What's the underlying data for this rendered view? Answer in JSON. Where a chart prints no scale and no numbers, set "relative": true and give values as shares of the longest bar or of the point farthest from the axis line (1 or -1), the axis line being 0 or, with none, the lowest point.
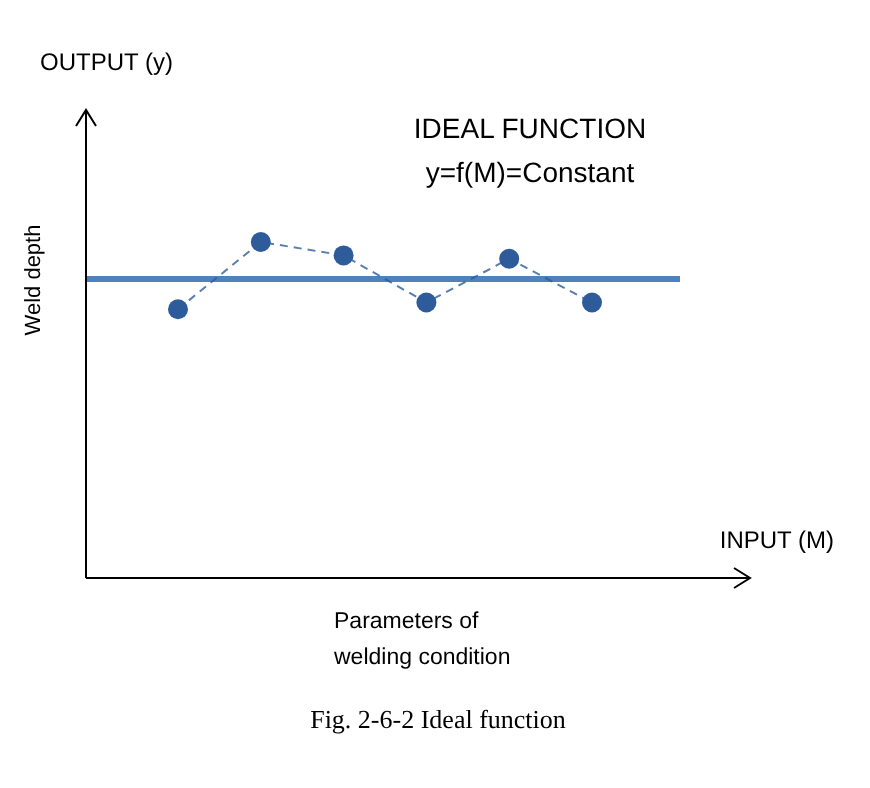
{
  "chart_data": {
    "type": "line",
    "relative": true,
    "ylabel": "Weld depth",
    "xlabel": "INPUT  (M)",
    "categories": [
      null,
      null,
      null,
      null,
      null,
      null
    ],
    "series": [
      {
        "color": "#2e5c9a",
        "values": [
          0.8,
          1,
          0.96,
          0.82,
          0.95,
          0.82
        ],
        "marker": "circle",
        "line_style": "dashed"
      }
    ],
    "ref_lines": [
      {
        "axis": "y",
        "value": 0.89,
        "color": "#4f81bd"
      }
    ],
    "annotations": [
      "IDEAL FUNCTION",
      "y=f(M)=Constant",
      "OUTPUT  (y)",
      "Parameters of",
      "welding condition",
      "Fig. 2-6-2   Ideal function"
    ]
  }
}
